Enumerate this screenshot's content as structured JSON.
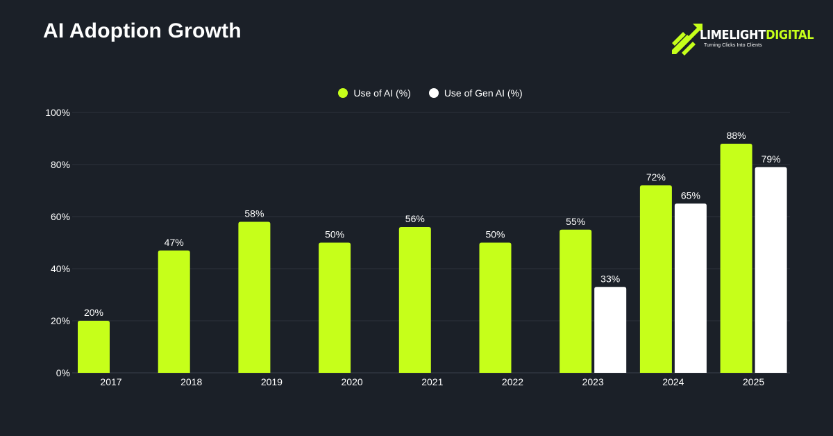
{
  "page": {
    "title": "AI Adoption Growth"
  },
  "brand": {
    "name_part1": "LIMELIGHT",
    "name_part2": "DIGITAL",
    "tagline": "Turning Clicks Into Clients",
    "icon": "rocket-arrows-icon"
  },
  "colors": {
    "background": "#1b2028",
    "accent": "#c6ff1a",
    "secondary": "#ffffff",
    "grid": "#2c323b"
  },
  "chart_data": {
    "type": "bar",
    "title": "AI Adoption Growth",
    "xlabel": "",
    "ylabel": "",
    "categories": [
      "2017",
      "2018",
      "2019",
      "2020",
      "2021",
      "2022",
      "2023",
      "2024",
      "2025"
    ],
    "series": [
      {
        "name": "Use of AI (%)",
        "color": "#c6ff1a",
        "values": [
          20,
          47,
          58,
          50,
          56,
          50,
          55,
          72,
          88
        ]
      },
      {
        "name": "Use of Gen AI (%)",
        "color": "#ffffff",
        "values": [
          null,
          null,
          null,
          null,
          null,
          null,
          33,
          65,
          79
        ]
      }
    ],
    "ylim": [
      0,
      100
    ],
    "yticks": [
      0,
      20,
      40,
      60,
      80,
      100
    ],
    "ytick_labels": [
      "0%",
      "20%",
      "40%",
      "60%",
      "80%",
      "100%"
    ],
    "value_suffix": "%",
    "grid": true,
    "legend_position": "top-center"
  }
}
